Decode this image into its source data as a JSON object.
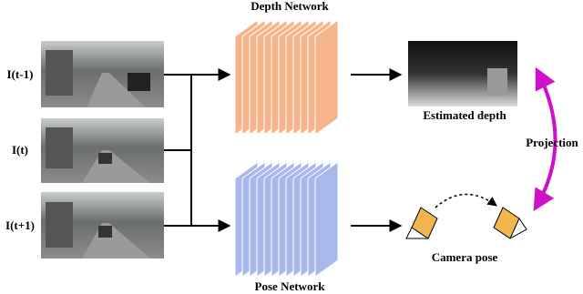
{
  "networks": {
    "depth": "Depth Network",
    "pose": "Pose Network"
  },
  "inputs": [
    "I(t-1)",
    "I(t)",
    "I(t+1)"
  ],
  "outputs": {
    "depth": "Estimated depth",
    "pose": "Camera pose"
  },
  "projection": "Projection"
}
